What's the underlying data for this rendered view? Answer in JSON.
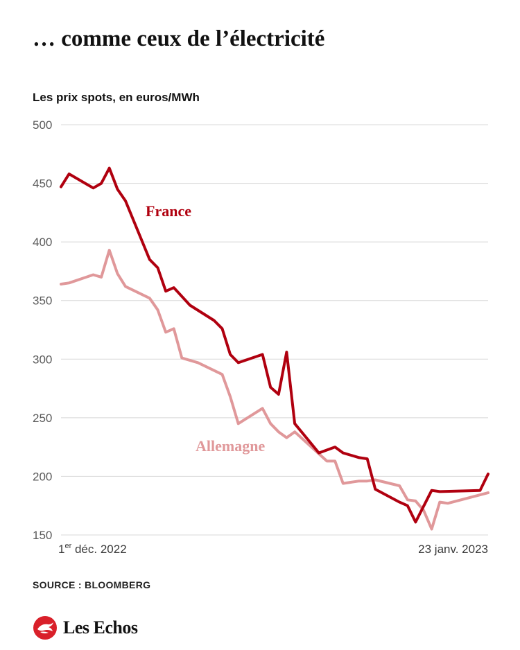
{
  "title": "… comme ceux de l’électricité",
  "subtitle": "Les prix spots, en euros/MWh",
  "source": "SOURCE : BLOOMBERG",
  "brand": {
    "name": "Les Echos",
    "logo_icon": "les-echos-bird-icon"
  },
  "colors": {
    "france": "#b0000f",
    "allemagne": "#e0989a",
    "grid": "#d8d8d8",
    "brand_red": "#d9202a"
  },
  "chart_data": {
    "type": "line",
    "title": "… comme ceux de l’électricité",
    "ylabel": "Les prix spots, en euros/MWh",
    "xlabel": "",
    "ylim": [
      150,
      500
    ],
    "yticks": [
      500,
      450,
      400,
      350,
      300,
      250,
      200,
      150
    ],
    "grid": true,
    "x_tick_labels": [
      {
        "pos": 0,
        "text": "1",
        "sup": "er",
        "rest": " déc. 2022"
      },
      {
        "pos": 53,
        "text": "23 janv. 2023",
        "sup": "",
        "rest": ""
      }
    ],
    "xlim": [
      0,
      53
    ],
    "series": [
      {
        "name": "France",
        "x": [
          0,
          1,
          4,
          5,
          6,
          7,
          8,
          11,
          12,
          13,
          14,
          16,
          19,
          20,
          21,
          22,
          25,
          26,
          27,
          28,
          29,
          32,
          34,
          35,
          36,
          37,
          38,
          39,
          42,
          43,
          44,
          46,
          47,
          52,
          53
        ],
        "values": [
          447,
          458,
          446,
          450,
          463,
          445,
          435,
          385,
          378,
          358,
          361,
          346,
          333,
          326,
          304,
          297,
          304,
          276,
          270,
          306,
          245,
          220,
          225,
          220,
          218,
          216,
          215,
          189,
          178,
          175,
          161,
          188,
          187,
          188,
          202
        ]
      },
      {
        "name": "Allemagne",
        "x": [
          0,
          1,
          4,
          5,
          6,
          7,
          8,
          11,
          12,
          13,
          14,
          15,
          17,
          20,
          21,
          22,
          25,
          26,
          27,
          28,
          29,
          33,
          34,
          35,
          36,
          37,
          38,
          39,
          42,
          43,
          44,
          45,
          46,
          47,
          48,
          53
        ],
        "values": [
          364,
          365,
          372,
          370,
          393,
          373,
          362,
          352,
          342,
          323,
          326,
          301,
          297,
          287,
          268,
          245,
          258,
          245,
          238,
          233,
          238,
          213,
          213,
          194,
          195,
          196,
          196,
          197,
          192,
          180,
          179,
          171,
          155,
          178,
          177,
          186
        ]
      }
    ],
    "annotations": [
      {
        "series": "France",
        "text": "France"
      },
      {
        "series": "Allemagne",
        "text": "Allemagne"
      }
    ]
  }
}
